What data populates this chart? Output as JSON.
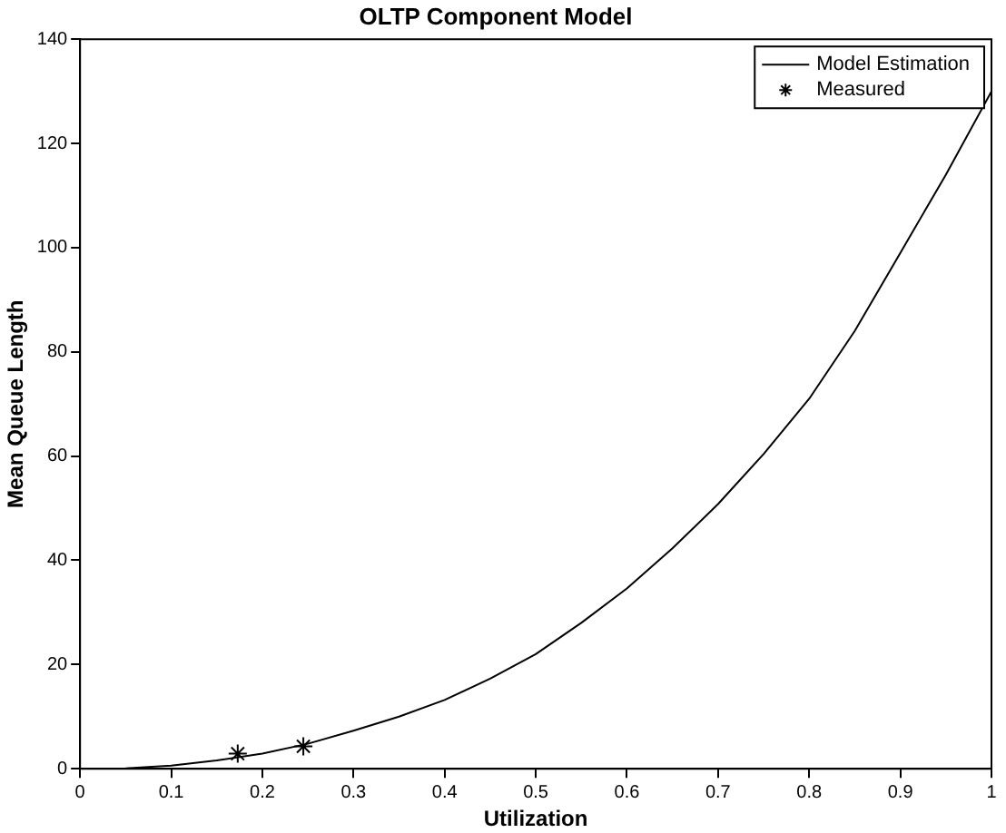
{
  "chart_data": {
    "type": "line",
    "title": "OLTP Component Model",
    "xlabel": "Utilization",
    "ylabel": "Mean Queue Length",
    "xlim": [
      0,
      1
    ],
    "xticks": [
      0,
      0.1,
      0.2,
      0.3,
      0.4,
      0.5,
      0.6,
      0.7,
      0.8,
      0.9,
      1
    ],
    "ylim": [
      0,
      140
    ],
    "yticks": [
      0,
      20,
      40,
      60,
      80,
      100,
      120,
      140
    ],
    "grid": false,
    "legend": "top right",
    "series": [
      {
        "name": "Model Estimation",
        "color": "#000000",
        "marker": "none",
        "line_style": "solid",
        "x": [
          0,
          0.05,
          0.1,
          0.15,
          0.2,
          0.25,
          0.3,
          0.35,
          0.4,
          0.45,
          0.5,
          0.55,
          0.6,
          0.65,
          0.7,
          0.75,
          0.8,
          0.85,
          0.9,
          0.95,
          1
        ],
        "values": [
          0,
          0.1,
          0.6,
          1.6,
          2.9,
          4.8,
          7.3,
          10,
          13.2,
          17.3,
          22,
          28,
          34.6,
          42.3,
          50.8,
          60.4,
          71,
          84,
          99,
          114,
          130
        ]
      },
      {
        "name": "Measured",
        "type": "scatter",
        "color": "#000000",
        "marker": "cross",
        "x": [
          0.173,
          0.245
        ],
        "values": [
          2.9,
          4.3
        ]
      }
    ]
  }
}
